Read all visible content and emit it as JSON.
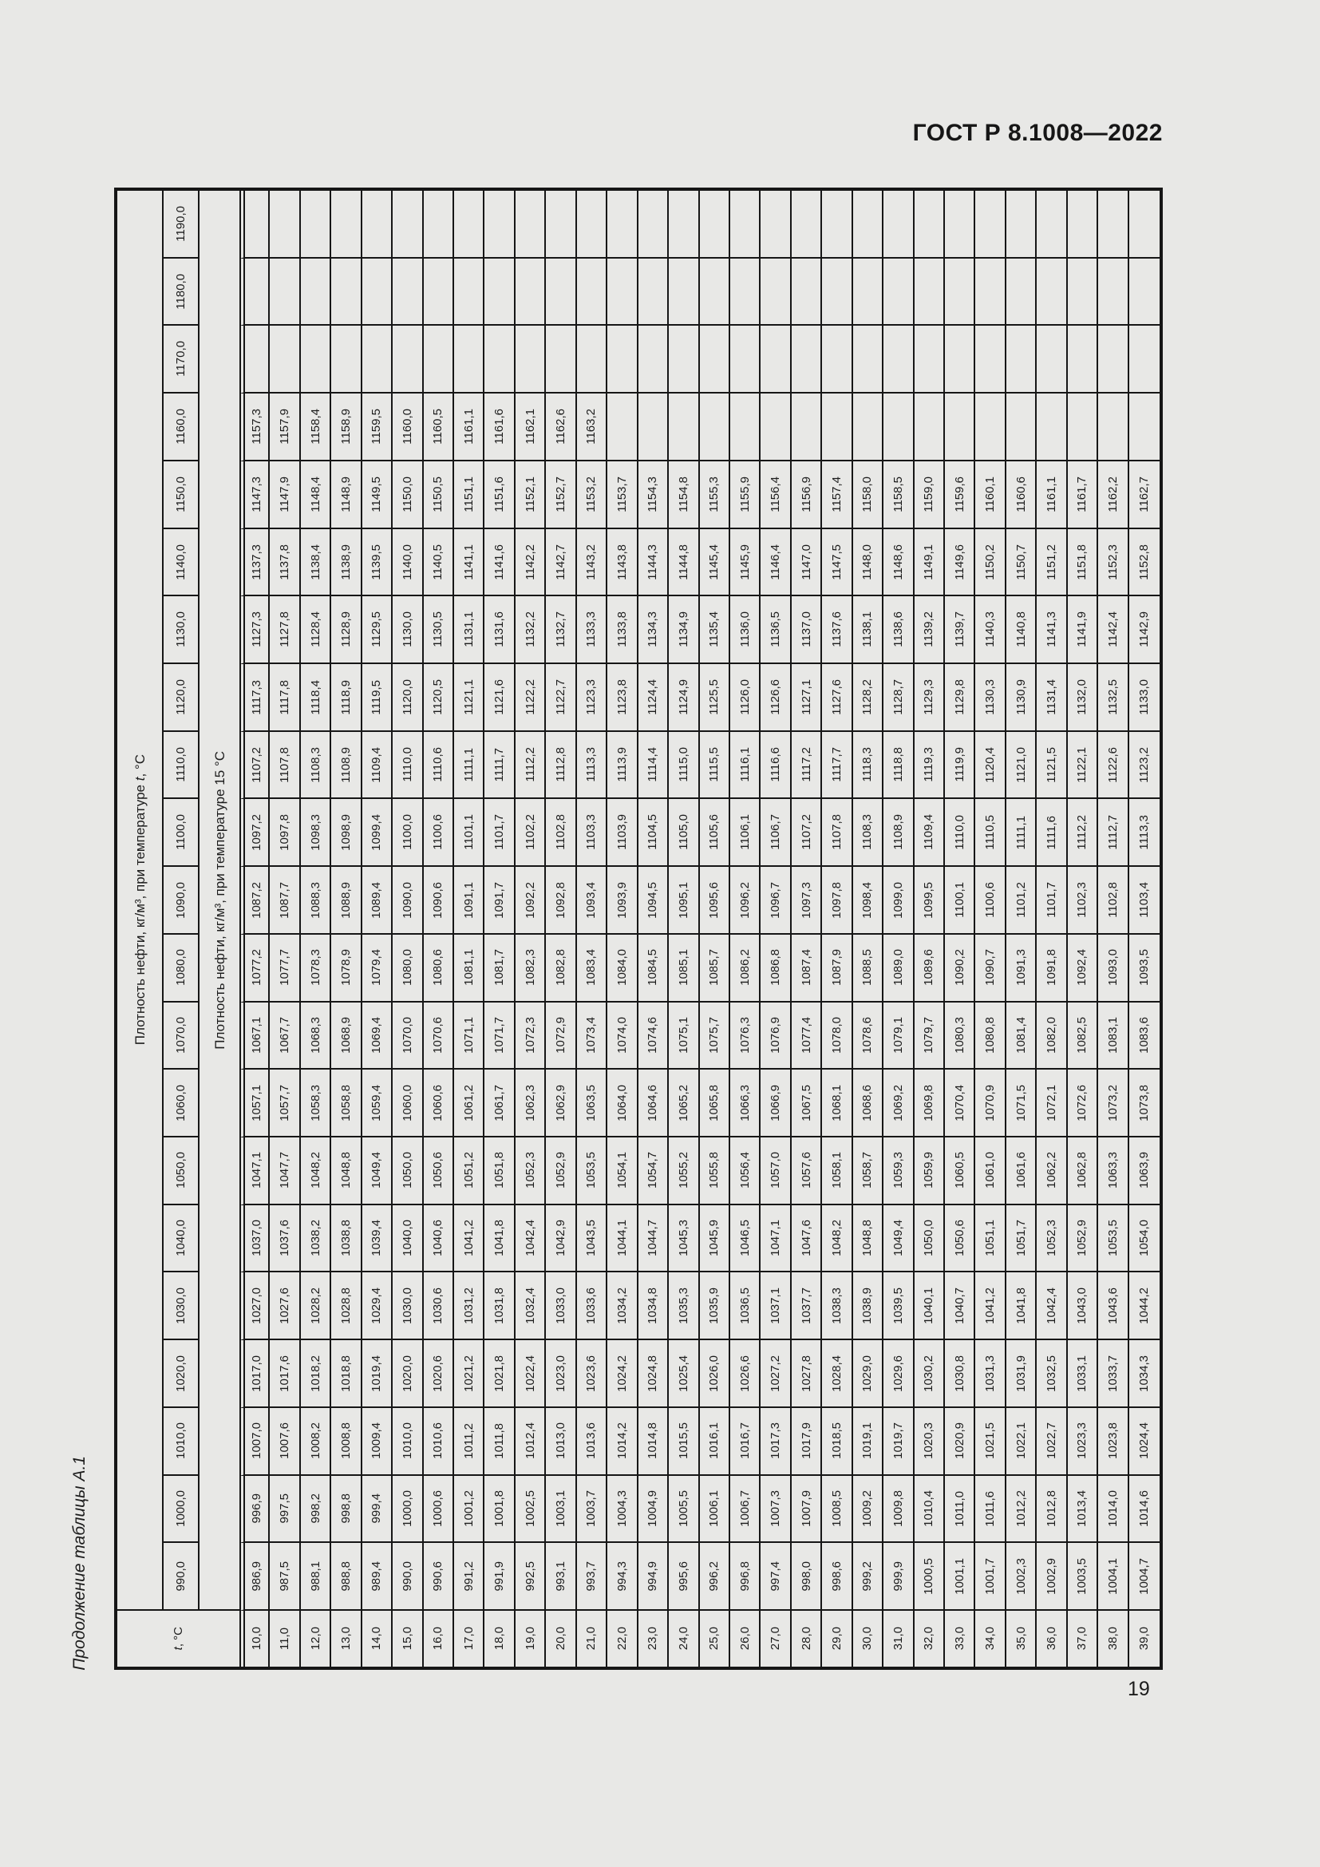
{
  "page": {
    "header": "ГОСТ Р 8.1008—2022",
    "continuation_label": "Продолжение таблицы А.1",
    "page_number": "19"
  },
  "table": {
    "corner_label_italic": "t",
    "corner_label_rest": ", °С",
    "band_density_at_t_prefix": "Плотность нефти, кг/м³, при температуре ",
    "band_density_at_t_italic": "t",
    "band_density_at_t_suffix": ", °С",
    "band_density_at_15": "Плотность нефти, кг/м³, при температуре 15 °С",
    "temperature_labels": [
      "10,0",
      "11,0",
      "12,0",
      "13,0",
      "14,0",
      "15,0",
      "16,0",
      "17,0",
      "18,0",
      "19,0",
      "20,0",
      "21,0",
      "22,0",
      "23,0",
      "24,0",
      "25,0",
      "26,0",
      "27,0",
      "28,0",
      "29,0",
      "30,0",
      "31,0",
      "32,0",
      "33,0",
      "34,0",
      "35,0",
      "36,0",
      "37,0",
      "38,0",
      "39,0"
    ],
    "rows": [
      {
        "label": "1190,0",
        "values": [
          "",
          "",
          "",
          "",
          "",
          "",
          "",
          "",
          "",
          "",
          "",
          "",
          "",
          "",
          "",
          "",
          "",
          "",
          "",
          "",
          "",
          "",
          "",
          "",
          "",
          "",
          "",
          "",
          "",
          ""
        ]
      },
      {
        "label": "1180,0",
        "values": [
          "",
          "",
          "",
          "",
          "",
          "",
          "",
          "",
          "",
          "",
          "",
          "",
          "",
          "",
          "",
          "",
          "",
          "",
          "",
          "",
          "",
          "",
          "",
          "",
          "",
          "",
          "",
          "",
          "",
          ""
        ]
      },
      {
        "label": "1170,0",
        "values": [
          "",
          "",
          "",
          "",
          "",
          "",
          "",
          "",
          "",
          "",
          "",
          "",
          "",
          "",
          "",
          "",
          "",
          "",
          "",
          "",
          "",
          "",
          "",
          "",
          "",
          "",
          "",
          "",
          "",
          ""
        ]
      },
      {
        "label": "1160,0",
        "values": [
          "1157,3",
          "1157,9",
          "1158,4",
          "1158,9",
          "1159,5",
          "1160,0",
          "1160,5",
          "1161,1",
          "1161,6",
          "1162,1",
          "1162,6",
          "1163,2",
          "",
          "",
          "",
          "",
          "",
          "",
          "",
          "",
          "",
          "",
          "",
          "",
          "",
          "",
          "",
          "",
          "",
          ""
        ]
      },
      {
        "label": "1150,0",
        "values": [
          "1147,3",
          "1147,9",
          "1148,4",
          "1148,9",
          "1149,5",
          "1150,0",
          "1150,5",
          "1151,1",
          "1151,6",
          "1152,1",
          "1152,7",
          "1153,2",
          "1153,7",
          "1154,3",
          "1154,8",
          "1155,3",
          "1155,9",
          "1156,4",
          "1156,9",
          "1157,4",
          "1158,0",
          "1158,5",
          "1159,0",
          "1159,6",
          "1160,1",
          "1160,6",
          "1161,1",
          "1161,7",
          "1162,2",
          "1162,7"
        ]
      },
      {
        "label": "1140,0",
        "values": [
          "1137,3",
          "1137,8",
          "1138,4",
          "1138,9",
          "1139,5",
          "1140,0",
          "1140,5",
          "1141,1",
          "1141,6",
          "1142,2",
          "1142,7",
          "1143,2",
          "1143,8",
          "1144,3",
          "1144,8",
          "1145,4",
          "1145,9",
          "1146,4",
          "1147,0",
          "1147,5",
          "1148,0",
          "1148,6",
          "1149,1",
          "1149,6",
          "1150,2",
          "1150,7",
          "1151,2",
          "1151,8",
          "1152,3",
          "1152,8"
        ]
      },
      {
        "label": "1130,0",
        "values": [
          "1127,3",
          "1127,8",
          "1128,4",
          "1128,9",
          "1129,5",
          "1130,0",
          "1130,5",
          "1131,1",
          "1131,6",
          "1132,2",
          "1132,7",
          "1133,3",
          "1133,8",
          "1134,3",
          "1134,9",
          "1135,4",
          "1136,0",
          "1136,5",
          "1137,0",
          "1137,6",
          "1138,1",
          "1138,6",
          "1139,2",
          "1139,7",
          "1140,3",
          "1140,8",
          "1141,3",
          "1141,9",
          "1142,4",
          "1142,9"
        ]
      },
      {
        "label": "1120,0",
        "values": [
          "1117,3",
          "1117,8",
          "1118,4",
          "1118,9",
          "1119,5",
          "1120,0",
          "1120,5",
          "1121,1",
          "1121,6",
          "1122,2",
          "1122,7",
          "1123,3",
          "1123,8",
          "1124,4",
          "1124,9",
          "1125,5",
          "1126,0",
          "1126,6",
          "1127,1",
          "1127,6",
          "1128,2",
          "1128,7",
          "1129,3",
          "1129,8",
          "1130,3",
          "1130,9",
          "1131,4",
          "1132,0",
          "1132,5",
          "1133,0"
        ]
      },
      {
        "label": "1110,0",
        "values": [
          "1107,2",
          "1107,8",
          "1108,3",
          "1108,9",
          "1109,4",
          "1110,0",
          "1110,6",
          "1111,1",
          "1111,7",
          "1112,2",
          "1112,8",
          "1113,3",
          "1113,9",
          "1114,4",
          "1115,0",
          "1115,5",
          "1116,1",
          "1116,6",
          "1117,2",
          "1117,7",
          "1118,3",
          "1118,8",
          "1119,3",
          "1119,9",
          "1120,4",
          "1121,0",
          "1121,5",
          "1122,1",
          "1122,6",
          "1123,2"
        ]
      },
      {
        "label": "1100,0",
        "values": [
          "1097,2",
          "1097,8",
          "1098,3",
          "1098,9",
          "1099,4",
          "1100,0",
          "1100,6",
          "1101,1",
          "1101,7",
          "1102,2",
          "1102,8",
          "1103,3",
          "1103,9",
          "1104,5",
          "1105,0",
          "1105,6",
          "1106,1",
          "1106,7",
          "1107,2",
          "1107,8",
          "1108,3",
          "1108,9",
          "1109,4",
          "1110,0",
          "1110,5",
          "1111,1",
          "1111,6",
          "1112,2",
          "1112,7",
          "1113,3"
        ]
      },
      {
        "label": "1090,0",
        "values": [
          "1087,2",
          "1087,7",
          "1088,3",
          "1088,9",
          "1089,4",
          "1090,0",
          "1090,6",
          "1091,1",
          "1091,7",
          "1092,2",
          "1092,8",
          "1093,4",
          "1093,9",
          "1094,5",
          "1095,1",
          "1095,6",
          "1096,2",
          "1096,7",
          "1097,3",
          "1097,8",
          "1098,4",
          "1099,0",
          "1099,5",
          "1100,1",
          "1100,6",
          "1101,2",
          "1101,7",
          "1102,3",
          "1102,8",
          "1103,4"
        ]
      },
      {
        "label": "1080,0",
        "values": [
          "1077,2",
          "1077,7",
          "1078,3",
          "1078,9",
          "1079,4",
          "1080,0",
          "1080,6",
          "1081,1",
          "1081,7",
          "1082,3",
          "1082,8",
          "1083,4",
          "1084,0",
          "1084,5",
          "1085,1",
          "1085,7",
          "1086,2",
          "1086,8",
          "1087,4",
          "1087,9",
          "1088,5",
          "1089,0",
          "1089,6",
          "1090,2",
          "1090,7",
          "1091,3",
          "1091,8",
          "1092,4",
          "1093,0",
          "1093,5"
        ]
      },
      {
        "label": "1070,0",
        "values": [
          "1067,1",
          "1067,7",
          "1068,3",
          "1068,9",
          "1069,4",
          "1070,0",
          "1070,6",
          "1071,1",
          "1071,7",
          "1072,3",
          "1072,9",
          "1073,4",
          "1074,0",
          "1074,6",
          "1075,1",
          "1075,7",
          "1076,3",
          "1076,9",
          "1077,4",
          "1078,0",
          "1078,6",
          "1079,1",
          "1079,7",
          "1080,3",
          "1080,8",
          "1081,4",
          "1082,0",
          "1082,5",
          "1083,1",
          "1083,6"
        ]
      },
      {
        "label": "1060,0",
        "values": [
          "1057,1",
          "1057,7",
          "1058,3",
          "1058,8",
          "1059,4",
          "1060,0",
          "1060,6",
          "1061,2",
          "1061,7",
          "1062,3",
          "1062,9",
          "1063,5",
          "1064,0",
          "1064,6",
          "1065,2",
          "1065,8",
          "1066,3",
          "1066,9",
          "1067,5",
          "1068,1",
          "1068,6",
          "1069,2",
          "1069,8",
          "1070,4",
          "1070,9",
          "1071,5",
          "1072,1",
          "1072,6",
          "1073,2",
          "1073,8"
        ]
      },
      {
        "label": "1050,0",
        "values": [
          "1047,1",
          "1047,7",
          "1048,2",
          "1048,8",
          "1049,4",
          "1050,0",
          "1050,6",
          "1051,2",
          "1051,8",
          "1052,3",
          "1052,9",
          "1053,5",
          "1054,1",
          "1054,7",
          "1055,2",
          "1055,8",
          "1056,4",
          "1057,0",
          "1057,6",
          "1058,1",
          "1058,7",
          "1059,3",
          "1059,9",
          "1060,5",
          "1061,0",
          "1061,6",
          "1062,2",
          "1062,8",
          "1063,3",
          "1063,9"
        ]
      },
      {
        "label": "1040,0",
        "values": [
          "1037,0",
          "1037,6",
          "1038,2",
          "1038,8",
          "1039,4",
          "1040,0",
          "1040,6",
          "1041,2",
          "1041,8",
          "1042,4",
          "1042,9",
          "1043,5",
          "1044,1",
          "1044,7",
          "1045,3",
          "1045,9",
          "1046,5",
          "1047,1",
          "1047,6",
          "1048,2",
          "1048,8",
          "1049,4",
          "1050,0",
          "1050,6",
          "1051,1",
          "1051,7",
          "1052,3",
          "1052,9",
          "1053,5",
          "1054,0"
        ]
      },
      {
        "label": "1030,0",
        "values": [
          "1027,0",
          "1027,6",
          "1028,2",
          "1028,8",
          "1029,4",
          "1030,0",
          "1030,6",
          "1031,2",
          "1031,8",
          "1032,4",
          "1033,0",
          "1033,6",
          "1034,2",
          "1034,8",
          "1035,3",
          "1035,9",
          "1036,5",
          "1037,1",
          "1037,7",
          "1038,3",
          "1038,9",
          "1039,5",
          "1040,1",
          "1040,7",
          "1041,2",
          "1041,8",
          "1042,4",
          "1043,0",
          "1043,6",
          "1044,2"
        ]
      },
      {
        "label": "1020,0",
        "values": [
          "1017,0",
          "1017,6",
          "1018,2",
          "1018,8",
          "1019,4",
          "1020,0",
          "1020,6",
          "1021,2",
          "1021,8",
          "1022,4",
          "1023,0",
          "1023,6",
          "1024,2",
          "1024,8",
          "1025,4",
          "1026,0",
          "1026,6",
          "1027,2",
          "1027,8",
          "1028,4",
          "1029,0",
          "1029,6",
          "1030,2",
          "1030,8",
          "1031,3",
          "1031,9",
          "1032,5",
          "1033,1",
          "1033,7",
          "1034,3"
        ]
      },
      {
        "label": "1010,0",
        "values": [
          "1007,0",
          "1007,6",
          "1008,2",
          "1008,8",
          "1009,4",
          "1010,0",
          "1010,6",
          "1011,2",
          "1011,8",
          "1012,4",
          "1013,0",
          "1013,6",
          "1014,2",
          "1014,8",
          "1015,5",
          "1016,1",
          "1016,7",
          "1017,3",
          "1017,9",
          "1018,5",
          "1019,1",
          "1019,7",
          "1020,3",
          "1020,9",
          "1021,5",
          "1022,1",
          "1022,7",
          "1023,3",
          "1023,8",
          "1024,4"
        ]
      },
      {
        "label": "1000,0",
        "values": [
          "996,9",
          "997,5",
          "998,2",
          "998,8",
          "999,4",
          "1000,0",
          "1000,6",
          "1001,2",
          "1001,8",
          "1002,5",
          "1003,1",
          "1003,7",
          "1004,3",
          "1004,9",
          "1005,5",
          "1006,1",
          "1006,7",
          "1007,3",
          "1007,9",
          "1008,5",
          "1009,2",
          "1009,8",
          "1010,4",
          "1011,0",
          "1011,6",
          "1012,2",
          "1012,8",
          "1013,4",
          "1014,0",
          "1014,6"
        ]
      },
      {
        "label": "990,0",
        "values": [
          "986,9",
          "987,5",
          "988,1",
          "988,8",
          "989,4",
          "990,0",
          "990,6",
          "991,2",
          "991,9",
          "992,5",
          "993,1",
          "993,7",
          "994,3",
          "994,9",
          "995,6",
          "996,2",
          "996,8",
          "997,4",
          "998,0",
          "998,6",
          "999,2",
          "999,9",
          "1000,5",
          "1001,1",
          "1001,7",
          "1002,3",
          "1002,9",
          "1003,5",
          "1004,1",
          "1004,7"
        ]
      }
    ]
  }
}
